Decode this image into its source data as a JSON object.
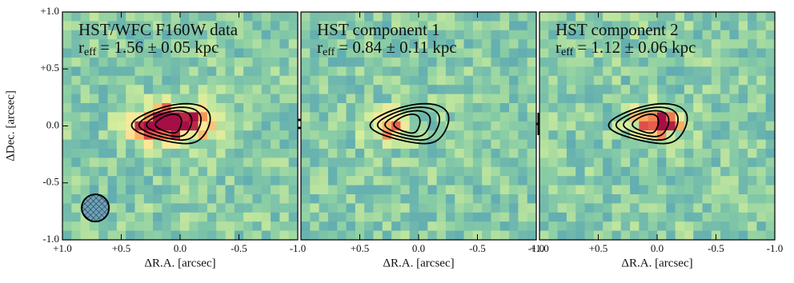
{
  "chart_data": [
    {
      "type": "image",
      "title": "HST/WFC F160W data",
      "subtitle": {
        "symbol": "r",
        "subscript": "eff",
        "text": "= 1.56 ± 0.05 kpc"
      },
      "xlabel": "ΔR.A. [arcsec]",
      "ylabel": "ΔDec. [arcsec]",
      "xlim": [
        1.0,
        -1.0
      ],
      "ylim": [
        -1.0,
        1.0
      ],
      "xticks": [
        {
          "value": 1.0,
          "label": "+1.0"
        },
        {
          "value": 0.5,
          "label": "+0.5"
        },
        {
          "value": 0.0,
          "label": "0.0"
        },
        {
          "value": -0.5,
          "label": "-0.5"
        },
        {
          "value": -1.0,
          "label": "-1.0"
        }
      ],
      "yticks": [
        {
          "value": -1.0,
          "label": "-1.0"
        },
        {
          "value": -0.5,
          "label": "-0.5"
        },
        {
          "value": 0.0,
          "label": "0.0"
        },
        {
          "value": 0.5,
          "label": "+0.5"
        },
        {
          "value": 1.0,
          "label": "+1.0"
        }
      ]
    },
    {
      "type": "image",
      "title": "HST component 1",
      "subtitle": {
        "symbol": "r",
        "subscript": "eff",
        "text": "= 0.84 ± 0.11 kpc"
      },
      "xlabel": "ΔR.A. [arcsec]",
      "xlim": [
        1.0,
        -1.0
      ],
      "ylim": [
        -1.0,
        1.0
      ],
      "xticks": [
        {
          "value": 0.5,
          "label": "+0.5"
        },
        {
          "value": 0.0,
          "label": "0.0"
        },
        {
          "value": -0.5,
          "label": "-0.5"
        },
        {
          "value": -1.0,
          "label": "-1.0"
        }
      ]
    },
    {
      "type": "image",
      "title": "HST component 2",
      "subtitle": {
        "symbol": "r",
        "subscript": "eff",
        "text": "= 1.12 ± 0.06 kpc"
      },
      "xlabel": "ΔR.A. [arcsec]",
      "xlim": [
        1.0,
        -1.0
      ],
      "ylim": [
        -1.0,
        1.0
      ],
      "xticks": [
        {
          "value": 1.0,
          "label": "+1.0"
        },
        {
          "value": 0.5,
          "label": "+0.5"
        },
        {
          "value": 0.0,
          "label": "0.0"
        },
        {
          "value": -0.5,
          "label": "-0.5"
        },
        {
          "value": -1.0,
          "label": "-1.0"
        }
      ]
    }
  ]
}
